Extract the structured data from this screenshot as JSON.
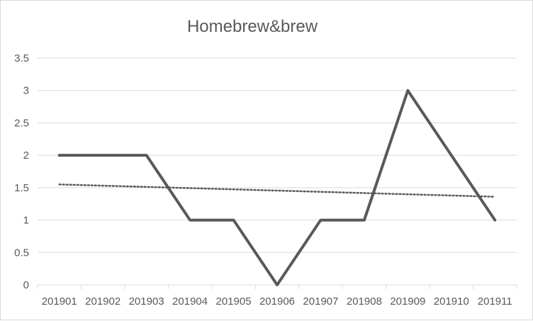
{
  "chart_data": {
    "type": "line",
    "title": "Homebrew&brew",
    "xlabel": "",
    "ylabel": "",
    "categories": [
      "201901",
      "201902",
      "201903",
      "201904",
      "201905",
      "201906",
      "201907",
      "201908",
      "201909",
      "201910",
      "201911"
    ],
    "series": [
      {
        "values": [
          2,
          2,
          2,
          1,
          1,
          0,
          1,
          1,
          3,
          2,
          1
        ],
        "color": "#595959"
      }
    ],
    "trendline": {
      "style": "dotted",
      "start": 1.55,
      "end": 1.36,
      "color": "#595959"
    },
    "ylim": [
      0,
      3.5
    ],
    "yticks": [
      "0",
      "0.5",
      "1",
      "1.5",
      "2",
      "2.5",
      "3",
      "3.5"
    ],
    "grid": true,
    "legend": "none"
  }
}
